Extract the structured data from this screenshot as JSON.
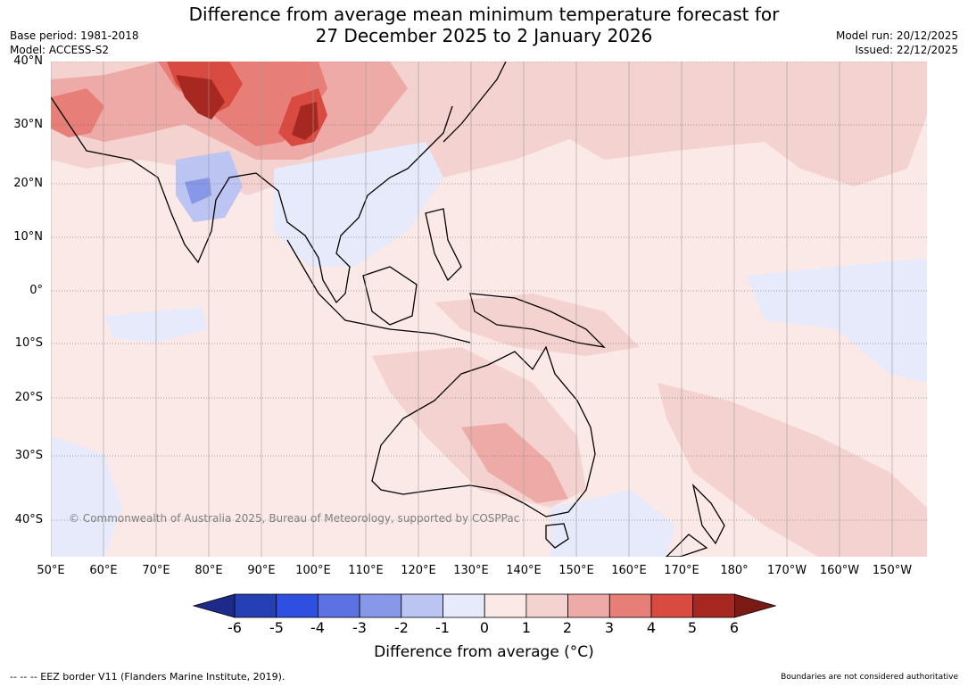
{
  "title": {
    "line1": "Difference from average mean minimum temperature forecast for",
    "line2": "27 December 2025 to 2 January 2026"
  },
  "meta": {
    "base_period": "Base period: 1981-2018",
    "model": "Model: ACCESS-S2",
    "model_run": "Model run: 20/12/2025",
    "issued": "Issued: 22/12/2025"
  },
  "lat_labels": [
    "40°N",
    "30°N",
    "20°N",
    "10°N",
    "0°",
    "10°S",
    "20°S",
    "30°S",
    "40°S"
  ],
  "lon_labels": [
    "50°E",
    "60°E",
    "70°E",
    "80°E",
    "90°E",
    "100°E",
    "110°E",
    "120°E",
    "130°E",
    "140°E",
    "150°E",
    "160°E",
    "170°E",
    "180°",
    "170°W",
    "160°W",
    "150°W"
  ],
  "copyright": "© Commonwealth of Australia 2025, Bureau of Meteorology, supported by COSPPac",
  "colorbar": {
    "ticks": [
      "-6",
      "-5",
      "-4",
      "-3",
      "-2",
      "-1",
      "0",
      "1",
      "2",
      "3",
      "4",
      "5",
      "6"
    ],
    "colors": [
      "#1e2a8a",
      "#263fb4",
      "#2f4fe0",
      "#5c72e3",
      "#8898e8",
      "#bcc4f2",
      "#e6eafa",
      "#fbe9e8",
      "#f4d2d0",
      "#eeaaa7",
      "#e77e78",
      "#d94a40",
      "#a62820",
      "#7a1a14"
    ],
    "title": "Difference from average (°C)"
  },
  "colors": {
    "neutral": "#fbe9e8",
    "light_warm": "#f4d2d0",
    "mid_warm": "#eeaaa7",
    "warm": "#e77e78",
    "hot": "#d94a40",
    "very_hot": "#a62820",
    "light_cool": "#e6eafa",
    "cool": "#bcc4f2",
    "mid_cool": "#8898e8"
  },
  "footer": {
    "eez": "--  --  -- EEZ border V11 (Flanders Marine Institute, 2019).",
    "boundaries": "Boundaries are not considered authoritative"
  }
}
